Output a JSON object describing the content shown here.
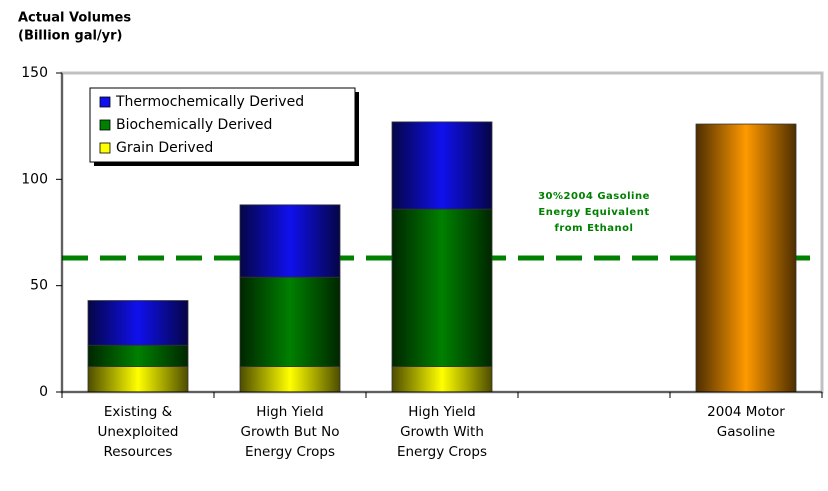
{
  "chart_data": {
    "type": "stacked_bar",
    "title": [
      "Actual Volumes",
      "(Billion gal/yr)"
    ],
    "categories": [
      [
        "Existing &",
        "Unexploited",
        "Resources"
      ],
      [
        "High Yield",
        "Growth But No",
        "Energy Crops"
      ],
      [
        "High Yield",
        "Growth With",
        "Energy Crops"
      ],
      null,
      [
        "2004 Motor",
        "Gasoline"
      ]
    ],
    "series": [
      {
        "name": "Grain Derived",
        "color": "#ffff00",
        "values": [
          12,
          12,
          12,
          null,
          null
        ]
      },
      {
        "name": "Biochemically Derived",
        "color": "#008000",
        "values": [
          10,
          42,
          74,
          null,
          null
        ]
      },
      {
        "name": "Thermochemically Derived",
        "color": "#1010ee",
        "values": [
          21,
          34,
          41,
          null,
          null
        ]
      },
      {
        "color": "#ff9900",
        "values": [
          null,
          null,
          null,
          null,
          126
        ]
      }
    ],
    "ylim": [
      0,
      150
    ],
    "yticks": [
      0,
      50,
      100,
      150
    ],
    "reference_line": {
      "value": 63,
      "color": "#008000",
      "label": [
        "30%2004  Gasoline",
        "Energy Equivalent",
        "from Ethanol"
      ]
    }
  }
}
